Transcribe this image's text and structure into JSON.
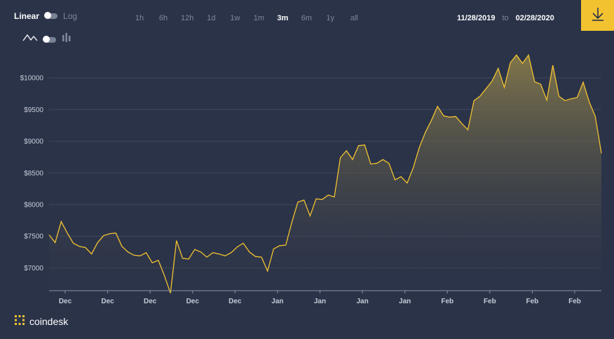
{
  "scale": {
    "linear_label": "Linear",
    "log_label": "Log",
    "selected": "Linear"
  },
  "ranges": [
    "1h",
    "6h",
    "12h",
    "1d",
    "1w",
    "1m",
    "3m",
    "6m",
    "1y",
    "all"
  ],
  "active_range": "3m",
  "date_range": {
    "from": "11/28/2019",
    "separator": "to",
    "to": "02/28/2020"
  },
  "brand": "coindesk",
  "colors": {
    "background": "#2b3349",
    "line": "#f2c230",
    "accent": "#f2c230",
    "grid": "#3e4760",
    "muted": "#7f879c"
  },
  "icons": {
    "line": "line-chart-icon",
    "candle": "candlestick-icon",
    "download": "download-icon",
    "brand": "coindesk-logo-icon"
  },
  "chart_data": {
    "type": "area",
    "y_tick_labels": [
      "$10000",
      "$9500",
      "$9000",
      "$8500",
      "$8000",
      "$7500",
      "$7000"
    ],
    "y_ticks": [
      10000,
      9500,
      9000,
      8500,
      8000,
      7500,
      7000
    ],
    "ylim": [
      6640,
      10400
    ],
    "x_tick_labels": [
      "Dec",
      "Dec",
      "Dec",
      "Dec",
      "Dec",
      "Jan",
      "Jan",
      "Jan",
      "Jan",
      "Feb",
      "Feb",
      "Feb",
      "Feb"
    ],
    "grid": true,
    "series": [
      {
        "values": [
          7520,
          7400,
          7730,
          7550,
          7390,
          7340,
          7320,
          7220,
          7400,
          7510,
          7540,
          7550,
          7340,
          7250,
          7200,
          7190,
          7240,
          7080,
          7120,
          6880,
          6600,
          7430,
          7150,
          7140,
          7290,
          7250,
          7170,
          7240,
          7220,
          7190,
          7240,
          7330,
          7390,
          7250,
          7180,
          7170,
          6950,
          7300,
          7350,
          7360,
          7720,
          8040,
          8070,
          7820,
          8090,
          8080,
          8150,
          8120,
          8740,
          8850,
          8710,
          8930,
          8940,
          8640,
          8650,
          8710,
          8650,
          8390,
          8440,
          8340,
          8580,
          8900,
          9140,
          9330,
          9550,
          9400,
          9380,
          9390,
          9280,
          9180,
          9640,
          9710,
          9830,
          9950,
          10150,
          9850,
          10240,
          10360,
          10230,
          10360,
          9940,
          9900,
          9650,
          10200,
          9710,
          9640,
          9670,
          9690,
          9930,
          9620,
          9390,
          8810
        ]
      }
    ]
  }
}
